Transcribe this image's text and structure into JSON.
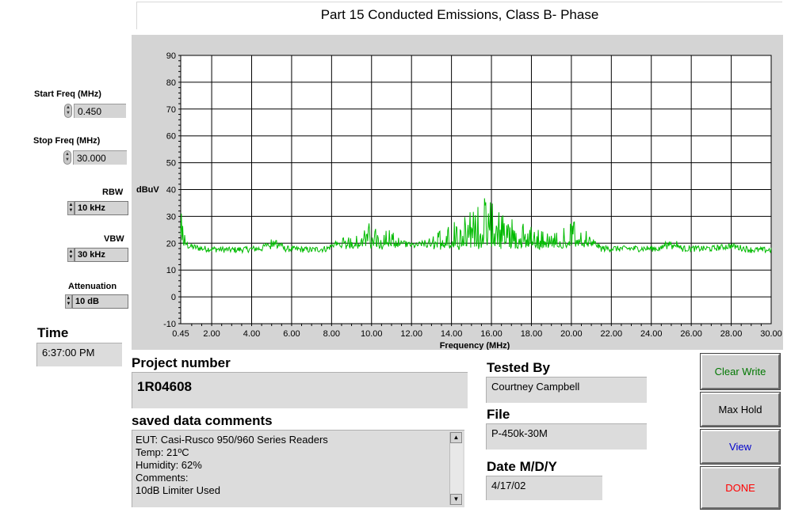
{
  "title": "Part 15 Conducted Emissions, Class B- Phase",
  "controls": {
    "start_freq": {
      "label": "Start Freq (MHz)",
      "value": "0.450"
    },
    "stop_freq": {
      "label": "Stop Freq (MHz)",
      "value": "30.000"
    },
    "rbw": {
      "label": "RBW",
      "value": "10 kHz"
    },
    "vbw": {
      "label": "VBW",
      "value": "30 kHz"
    },
    "attenuation": {
      "label": "Attenuation",
      "value": "10 dB"
    },
    "time": {
      "label": "Time",
      "value": "6:37:00 PM"
    }
  },
  "project": {
    "label": "Project number",
    "value": "1R04608"
  },
  "comments": {
    "label": "saved data comments",
    "text": "EUT: Casi-Rusco 950/960 Series Readers\nTemp: 21ºC\nHumidity: 62%\nComments:\n10dB Limiter Used"
  },
  "tested_by": {
    "label": "Tested By",
    "value": "Courtney Campbell"
  },
  "file": {
    "label": "File",
    "value": "P-450k-30M"
  },
  "date": {
    "label": "Date M/D/Y",
    "value": "4/17/02"
  },
  "buttons": [
    {
      "label": "Clear Write",
      "color": "#007700"
    },
    {
      "label": "Max Hold",
      "color": "#000000"
    },
    {
      "label": "View",
      "color": "#0000cc"
    },
    {
      "label": "DONE",
      "color": "#ff0000"
    }
  ],
  "chart_data": {
    "type": "line",
    "xlabel": "Frequency (MHz)",
    "ylabel": "dBuV",
    "xlim": [
      0.45,
      30.0
    ],
    "ylim": [
      -10,
      90
    ],
    "x_ticks": [
      "0.45",
      "2.00",
      "4.00",
      "6.00",
      "8.00",
      "10.00",
      "12.00",
      "14.00",
      "16.00",
      "18.00",
      "20.00",
      "22.00",
      "24.00",
      "26.00",
      "28.00",
      "30.00"
    ],
    "y_ticks": [
      "90",
      "80",
      "70",
      "60",
      "50",
      "40",
      "30",
      "20",
      "10",
      "0",
      "-10"
    ],
    "grid": true,
    "series_color": "#00bb00",
    "envelope": [
      [
        0.45,
        32
      ],
      [
        0.6,
        23
      ],
      [
        0.8,
        19
      ],
      [
        1.5,
        18
      ],
      [
        3,
        17.5
      ],
      [
        4.5,
        18
      ],
      [
        5.2,
        22
      ],
      [
        5.6,
        18
      ],
      [
        7,
        17.5
      ],
      [
        7.8,
        18
      ],
      [
        8.2,
        20
      ],
      [
        9.0,
        22
      ],
      [
        10.0,
        27
      ],
      [
        10.3,
        23
      ],
      [
        11.0,
        24
      ],
      [
        11.5,
        20
      ],
      [
        12.2,
        19
      ],
      [
        13.0,
        21
      ],
      [
        14.0,
        27
      ],
      [
        15.0,
        33
      ],
      [
        15.6,
        36
      ],
      [
        16.2,
        33
      ],
      [
        17.0,
        28
      ],
      [
        18.0,
        25
      ],
      [
        19.0,
        22
      ],
      [
        20.4,
        28
      ],
      [
        21.0,
        21
      ],
      [
        21.5,
        18
      ],
      [
        23.0,
        18
      ],
      [
        24.5,
        18
      ],
      [
        25.0,
        22
      ],
      [
        25.5,
        18
      ],
      [
        27.0,
        18
      ],
      [
        28.0,
        19
      ],
      [
        29.0,
        17.5
      ],
      [
        30.0,
        17.5
      ]
    ]
  }
}
